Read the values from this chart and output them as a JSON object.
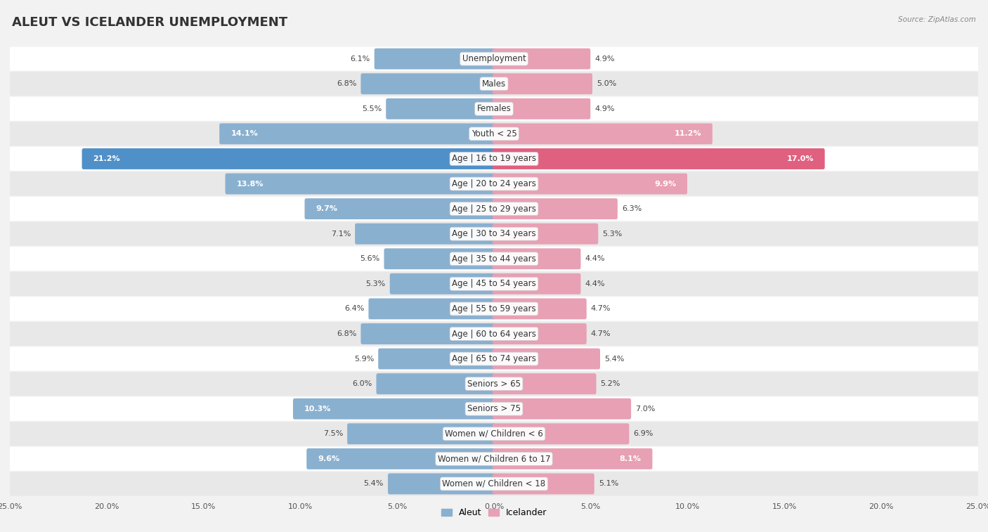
{
  "title": "ALEUT VS ICELANDER UNEMPLOYMENT",
  "source": "Source: ZipAtlas.com",
  "categories": [
    "Unemployment",
    "Males",
    "Females",
    "Youth < 25",
    "Age | 16 to 19 years",
    "Age | 20 to 24 years",
    "Age | 25 to 29 years",
    "Age | 30 to 34 years",
    "Age | 35 to 44 years",
    "Age | 45 to 54 years",
    "Age | 55 to 59 years",
    "Age | 60 to 64 years",
    "Age | 65 to 74 years",
    "Seniors > 65",
    "Seniors > 75",
    "Women w/ Children < 6",
    "Women w/ Children 6 to 17",
    "Women w/ Children < 18"
  ],
  "aleut_values": [
    6.1,
    6.8,
    5.5,
    14.1,
    21.2,
    13.8,
    9.7,
    7.1,
    5.6,
    5.3,
    6.4,
    6.8,
    5.9,
    6.0,
    10.3,
    7.5,
    9.6,
    5.4
  ],
  "icelander_values": [
    4.9,
    5.0,
    4.9,
    11.2,
    17.0,
    9.9,
    6.3,
    5.3,
    4.4,
    4.4,
    4.7,
    4.7,
    5.4,
    5.2,
    7.0,
    6.9,
    8.1,
    5.1
  ],
  "aleut_color": "#8ab0d0",
  "icelander_color": "#e8a0b4",
  "aleut_highlight_color": "#5090c8",
  "icelander_highlight_color": "#e06080",
  "axis_max": 25.0,
  "background_color": "#f2f2f2",
  "row_color_light": "#ffffff",
  "row_color_dark": "#e8e8e8",
  "title_fontsize": 13,
  "label_fontsize": 8.5,
  "value_fontsize": 8
}
